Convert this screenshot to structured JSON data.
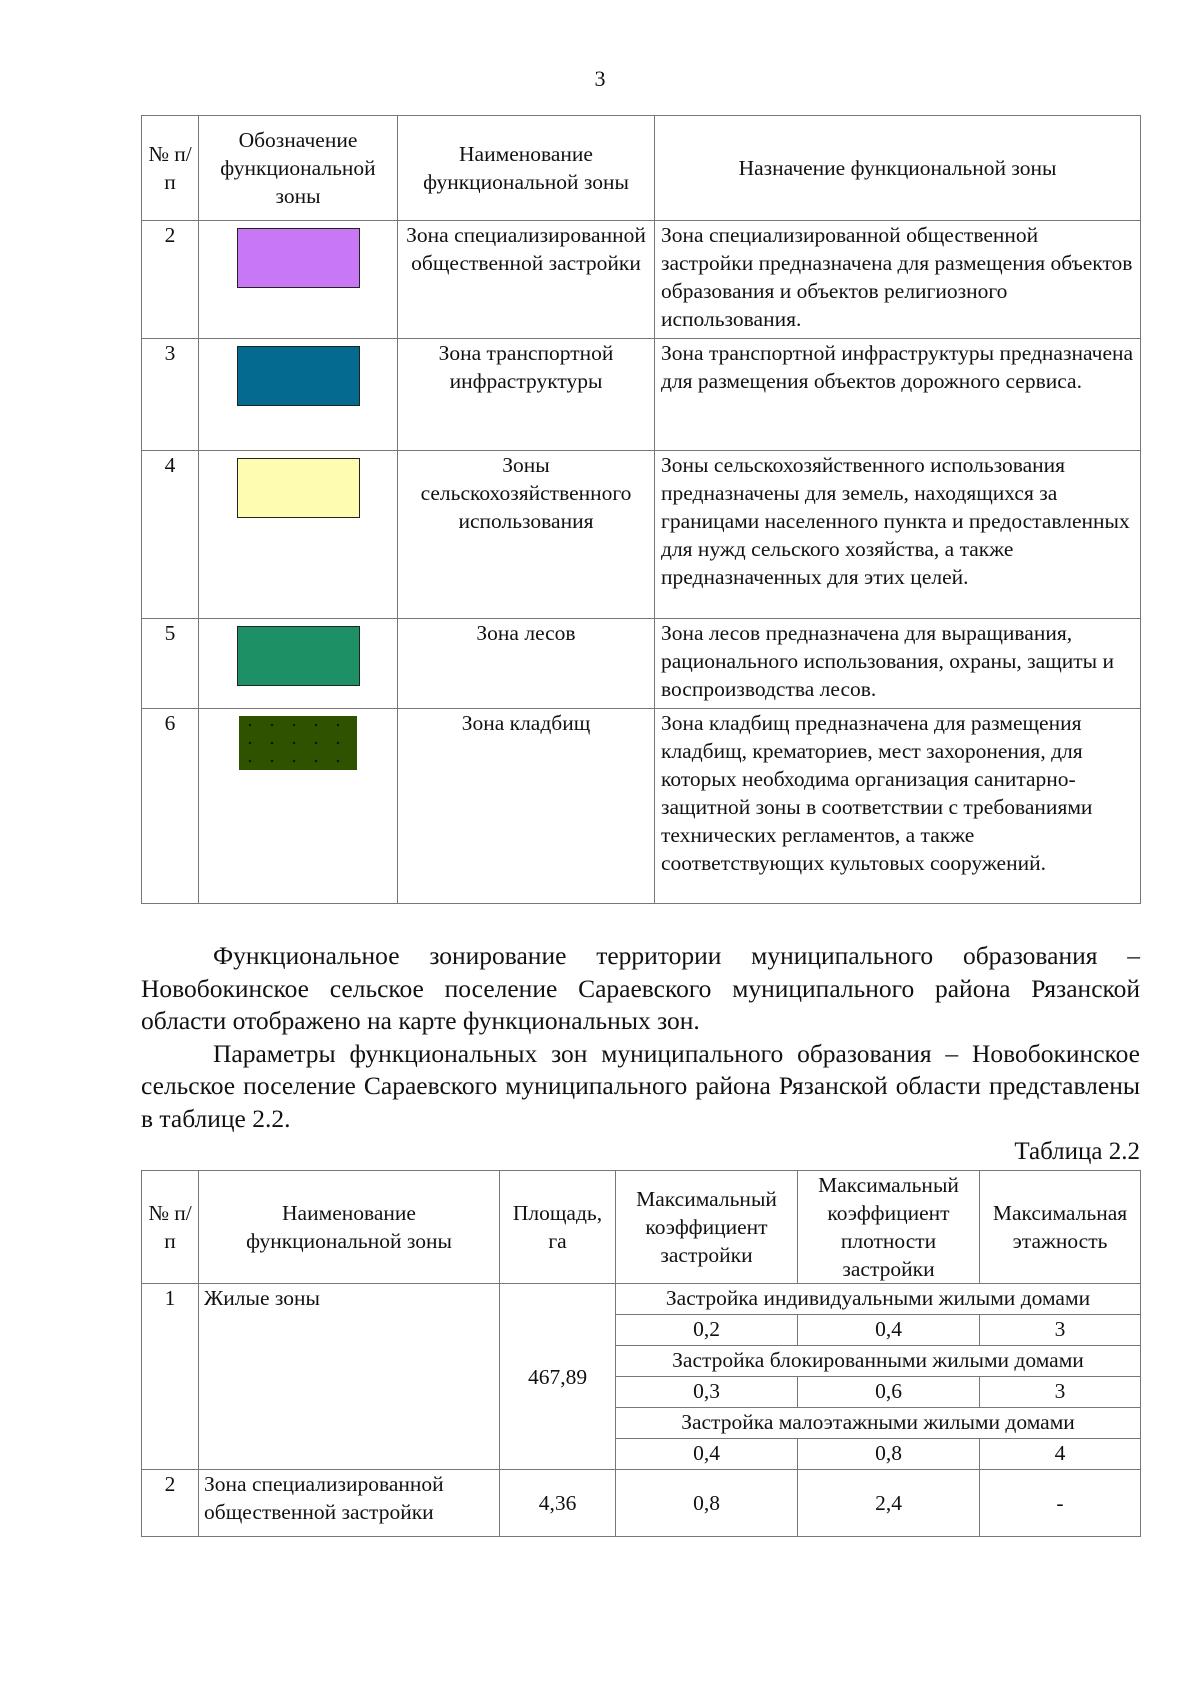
{
  "page_number": "3",
  "table1": {
    "headers": [
      "№ п/п",
      "Обозначение функциональной зоны",
      "Наименование функциональной зоны",
      "Назначение функциональной зоны"
    ],
    "rows": [
      {
        "num": "2",
        "color": "#c878f4",
        "pattern": "solid",
        "name": "Зона специализированной общественной застройки",
        "purpose": "Зона специализированной общественной застройки предназначена для размещения объектов образования и объектов религиозного использования."
      },
      {
        "num": "3",
        "color": "#046a90",
        "pattern": "solid",
        "name": "Зона транспортной инфраструктуры",
        "purpose": "Зона транспортной инфраструктуры предназначена для размещения объектов дорожного сервиса."
      },
      {
        "num": "4",
        "color": "#fefcb0",
        "pattern": "solid",
        "name": "Зоны сельскохозяйственного использования",
        "purpose": "Зоны сельскохозяйственного использования предназначены для земель, находящихся за границами населенного пункта и предоставленных для нужд сельского хозяйства, а также предназначенных для этих целей."
      },
      {
        "num": "5",
        "color": "#1e9066",
        "pattern": "solid",
        "name": "Зона лесов",
        "purpose": "Зона лесов предназначена для выращивания, рационального использования, охраны, защиты и воспроизводства лесов."
      },
      {
        "num": "6",
        "color": "#2f5200",
        "pattern": "crosses",
        "name": "Зона кладбищ",
        "purpose": "Зона кладбищ предназначена для размещения кладбищ, крематориев, мест захоронения, для которых необходима организация санитарно-защитной зоны в соответствии с требованиями технических регламентов, а также соответствующих культовых сооружений."
      }
    ]
  },
  "paragraphs": [
    "Функциональное зонирование территории муниципального образования – Новобокинское сельское поселение Сараевского муниципального района Рязанской области отображено на карте функциональных зон.",
    "Параметры функциональных зон муниципального образования – Новобокинское сельское поселение Сараевского муниципального района Рязанской области представлены в таблице 2.2."
  ],
  "table2": {
    "caption": "Таблица 2.2",
    "headers": [
      "№ п/п",
      "Наименование функциональной зоны",
      "Площадь, га",
      "Максимальный коэффициент застройки",
      "Максимальный коэффициент плотности застройки",
      "Максимальная этажность"
    ],
    "row1": {
      "num": "1",
      "name": "Жилые зоны",
      "area": "467,89",
      "groups": [
        {
          "title": "Застройка индивидуальными жилыми домами",
          "values": [
            "0,2",
            "0,4",
            "3"
          ]
        },
        {
          "title": "Застройка блокированными жилыми домами",
          "values": [
            "0,3",
            "0,6",
            "3"
          ]
        },
        {
          "title": "Застройка малоэтажными жилыми домами",
          "values": [
            "0,4",
            "0,8",
            "4"
          ]
        }
      ]
    },
    "row2": {
      "num": "2",
      "name": "Зона специализированной общественной застройки",
      "area": "4,36",
      "values": [
        "0,8",
        "2,4",
        "-"
      ]
    }
  }
}
